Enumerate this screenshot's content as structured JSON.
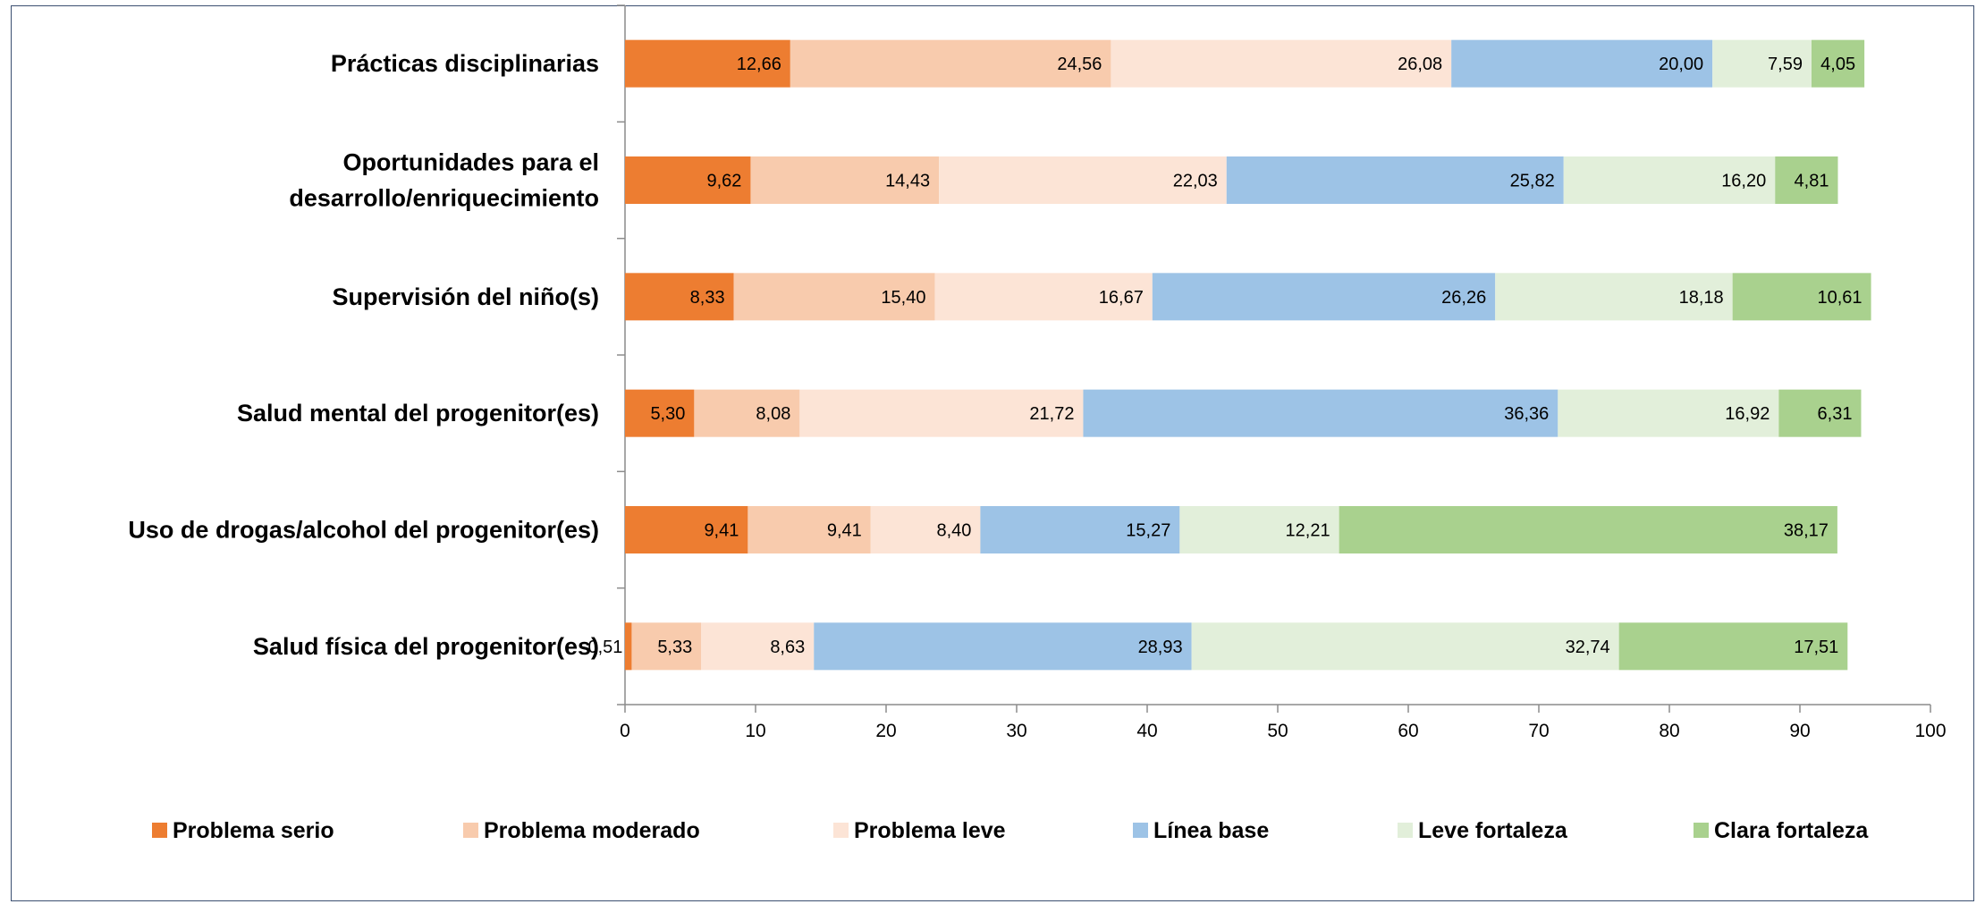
{
  "chart_data": {
    "type": "bar",
    "orientation": "horizontal",
    "stacked": true,
    "categories": [
      [
        "Prácticas disciplinarias"
      ],
      [
        "Oportunidades para el",
        "desarrollo/enriquecimiento"
      ],
      [
        "Supervisión del niño(s)"
      ],
      [
        "Salud mental del progenitor(es)"
      ],
      [
        "Uso de drogas/alcohol del progenitor(es)"
      ],
      [
        "Salud física del progenitor(es)"
      ]
    ],
    "series": [
      {
        "name": "Problema serio",
        "color": "#ED7D31",
        "values": [
          12.66,
          9.62,
          8.33,
          5.3,
          9.41,
          0.51
        ],
        "labels": [
          "12,66",
          "9,62",
          "8,33",
          "5,30",
          "9,41",
          "0,51"
        ]
      },
      {
        "name": "Problema moderado",
        "color": "#F8CBAD",
        "values": [
          24.56,
          14.43,
          15.4,
          8.08,
          9.41,
          5.33
        ],
        "labels": [
          "24,56",
          "14,43",
          "15,40",
          "8,08",
          "9,41",
          "5,33"
        ]
      },
      {
        "name": "Problema leve",
        "color": "#FCE4D6",
        "values": [
          26.08,
          22.03,
          16.67,
          21.72,
          8.4,
          8.63
        ],
        "labels": [
          "26,08",
          "22,03",
          "16,67",
          "21,72",
          "8,40",
          "8,63"
        ]
      },
      {
        "name": "Línea base",
        "color": "#9DC3E6",
        "values": [
          20.0,
          25.82,
          26.26,
          36.36,
          15.27,
          28.93
        ],
        "labels": [
          "20,00",
          "25,82",
          "26,26",
          "36,36",
          "15,27",
          "28,93"
        ]
      },
      {
        "name": "Leve fortaleza",
        "color": "#E2EFDA",
        "values": [
          7.59,
          16.2,
          18.18,
          16.92,
          12.21,
          32.74
        ],
        "labels": [
          "7,59",
          "16,20",
          "18,18",
          "16,92",
          "12,21",
          "32,74"
        ]
      },
      {
        "name": "Clara fortaleza",
        "color": "#A9D18E",
        "values": [
          4.05,
          4.81,
          10.61,
          6.31,
          38.17,
          17.51
        ],
        "labels": [
          "4,05",
          "4,81",
          "10,61",
          "6,31",
          "38,17",
          "17,51"
        ]
      }
    ],
    "xlim": [
      0,
      100
    ],
    "xticks": [
      0,
      10,
      20,
      30,
      40,
      50,
      60,
      70,
      80,
      90,
      100
    ],
    "title": "",
    "xlabel": "",
    "ylabel": "",
    "grid": false,
    "legend_position": "bottom"
  }
}
